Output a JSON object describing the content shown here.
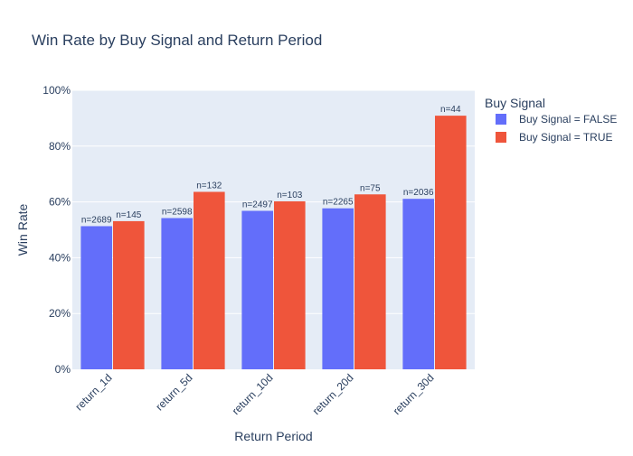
{
  "chart_data": {
    "type": "bar",
    "title": "Win Rate by Buy Signal and Return Period",
    "xlabel": "Return Period",
    "ylabel": "Win Rate",
    "ylim": [
      0,
      1
    ],
    "y_ticks": [
      0,
      0.2,
      0.4,
      0.6,
      0.8,
      1.0
    ],
    "y_tick_labels": [
      "0%",
      "20%",
      "40%",
      "60%",
      "80%",
      "100%"
    ],
    "categories": [
      "return_1d",
      "return_5d",
      "return_10d",
      "return_20d",
      "return_30d"
    ],
    "legend_title": "Buy Signal",
    "legend_position": "right",
    "grid": true,
    "series": [
      {
        "name": "Buy Signal = FALSE",
        "color": "#636efa",
        "values": [
          0.513,
          0.542,
          0.568,
          0.577,
          0.611
        ],
        "labels": [
          "n=2689",
          "n=2598",
          "n=2497",
          "n=2265",
          "n=2036"
        ]
      },
      {
        "name": "Buy Signal = TRUE",
        "color": "#ef553b",
        "values": [
          0.531,
          0.636,
          0.602,
          0.627,
          0.909
        ],
        "labels": [
          "n=145",
          "n=132",
          "n=103",
          "n=75",
          "n=44"
        ]
      }
    ]
  }
}
